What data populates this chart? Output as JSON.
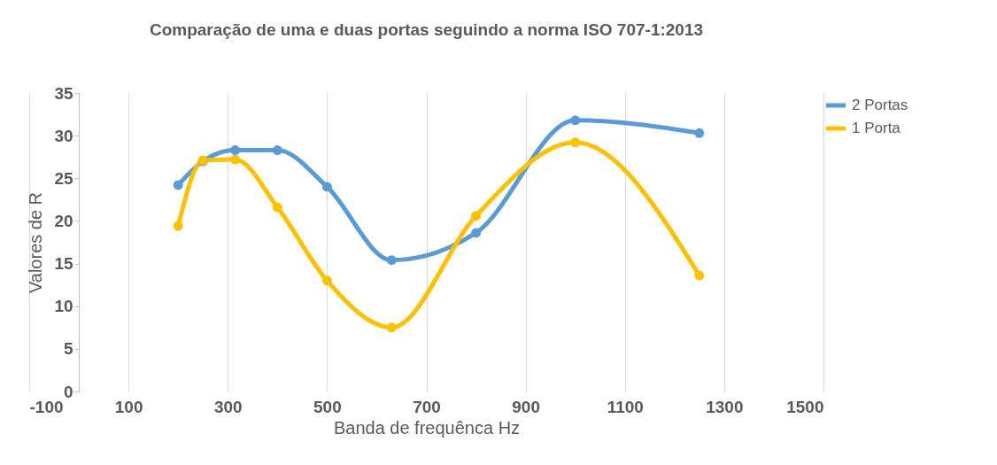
{
  "chart_data": {
    "type": "line",
    "title": "Comparação de uma e duas portas seguindo a norma ISO 707-1:2013",
    "xlabel": "Banda de frequênca Hz",
    "ylabel": "Valores de R",
    "x": [
      200,
      250,
      315,
      400,
      500,
      630,
      800,
      1000,
      1250
    ],
    "series": [
      {
        "name": "2 Portas",
        "color": "#5b9bd5",
        "values": [
          24.2,
          27.0,
          28.3,
          28.3,
          24.0,
          15.4,
          18.6,
          31.8,
          30.3
        ]
      },
      {
        "name": "1 Porta",
        "color": "#ffc000",
        "values": [
          19.4,
          27.1,
          27.2,
          21.6,
          13.0,
          7.5,
          20.6,
          29.2,
          13.6
        ]
      }
    ],
    "xlim": [
      -100,
      1500
    ],
    "xticks": [
      -100,
      100,
      300,
      500,
      700,
      900,
      1100,
      1300,
      1500
    ],
    "ylim": [
      0,
      35
    ],
    "yticks": [
      0,
      5,
      10,
      15,
      20,
      25,
      30,
      35
    ],
    "grid": "x",
    "legend": "right",
    "marker": "circle",
    "line_style": "solid"
  }
}
